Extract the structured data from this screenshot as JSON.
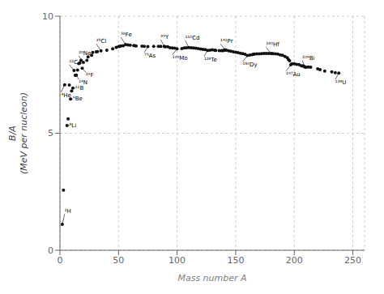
{
  "chart_data": {
    "type": "scatter",
    "xlabel": "Mass number A",
    "ylabel": "B/A\n(MeV per nucleon)",
    "x": [
      2,
      3,
      4,
      6,
      7,
      8,
      9,
      10,
      11,
      12,
      13,
      14,
      15,
      16,
      17,
      18,
      19,
      20,
      23,
      24,
      27,
      28,
      31,
      32,
      35,
      40,
      45,
      48,
      50,
      51,
      52,
      54,
      56,
      58,
      60,
      63,
      64,
      65,
      70,
      72,
      75,
      80,
      84,
      86,
      89,
      90,
      92,
      94,
      96,
      98,
      100,
      104,
      106,
      108,
      110,
      112,
      114,
      116,
      118,
      120,
      122,
      124,
      126,
      128,
      130,
      132,
      133,
      136,
      138,
      139,
      140,
      141,
      142,
      144,
      146,
      148,
      150,
      152,
      154,
      156,
      158,
      160,
      162,
      164,
      165,
      166,
      168,
      170,
      172,
      174,
      176,
      178,
      180,
      181,
      182,
      184,
      186,
      188,
      190,
      192,
      194,
      195,
      196,
      197,
      198,
      200,
      202,
      204,
      206,
      207,
      208,
      209,
      210,
      212,
      214,
      220,
      222,
      226,
      232,
      235,
      238
    ],
    "values": [
      1.11,
      2.57,
      7.07,
      5.33,
      5.61,
      7.06,
      6.46,
      6.81,
      6.93,
      7.68,
      7.47,
      7.48,
      7.7,
      7.98,
      8.0,
      8.11,
      7.78,
      8.03,
      8.11,
      8.26,
      8.33,
      8.45,
      8.48,
      8.49,
      8.52,
      8.55,
      8.61,
      8.67,
      8.7,
      8.71,
      8.73,
      8.74,
      8.79,
      8.77,
      8.76,
      8.75,
      8.74,
      8.73,
      8.72,
      8.71,
      8.7,
      8.71,
      8.71,
      8.71,
      8.71,
      8.69,
      8.69,
      8.65,
      8.64,
      8.63,
      8.61,
      8.62,
      8.64,
      8.65,
      8.66,
      8.65,
      8.64,
      8.63,
      8.62,
      8.6,
      8.58,
      8.57,
      8.54,
      8.55,
      8.56,
      8.55,
      8.54,
      8.53,
      8.53,
      8.53,
      8.54,
      8.56,
      8.55,
      8.52,
      8.5,
      8.48,
      8.46,
      8.44,
      8.42,
      8.4,
      8.37,
      8.32,
      8.34,
      8.36,
      8.37,
      8.38,
      8.39,
      8.39,
      8.4,
      8.41,
      8.41,
      8.41,
      8.41,
      8.4,
      8.4,
      8.39,
      8.38,
      8.35,
      8.33,
      8.28,
      8.23,
      8.15,
      8.1,
      7.92,
      7.97,
      7.97,
      7.94,
      7.93,
      7.88,
      7.87,
      7.87,
      7.83,
      7.82,
      7.83,
      7.82,
      7.75,
      7.72,
      7.66,
      7.62,
      7.59,
      7.57
    ],
    "color": "#111111",
    "marker": "o",
    "xlim": [
      0,
      260
    ],
    "ylim": [
      0,
      10
    ],
    "xticks": [
      0,
      50,
      100,
      150,
      200,
      250
    ],
    "yticks": [
      0,
      5,
      10
    ],
    "grid": true,
    "annotations": [
      {
        "text": "²H",
        "x": 2,
        "y": 1.11,
        "text_x": 4,
        "text_y": 1.55
      },
      {
        "text": "⁴He",
        "x": 4,
        "y": 7.07,
        "text_x": 1,
        "text_y": 6.75
      },
      {
        "text": "⁶Li",
        "x": 6,
        "y": 5.33,
        "text_x": 8,
        "text_y": 5.33
      },
      {
        "text": "⁹Be",
        "x": 9,
        "y": 6.46,
        "text_x": 11,
        "text_y": 6.46
      },
      {
        "text": "¹¹B",
        "x": 11,
        "y": 6.93,
        "text_x": 13,
        "text_y": 6.93
      },
      {
        "text": "¹²C",
        "x": 12,
        "y": 7.68,
        "text_x": 8,
        "text_y": 7.93
      },
      {
        "text": "¹⁴N",
        "x": 14,
        "y": 7.48,
        "text_x": 16,
        "text_y": 7.3
      },
      {
        "text": "¹⁹F",
        "x": 19,
        "y": 7.78,
        "text_x": 22,
        "text_y": 7.6
      },
      {
        "text": "²⁰Ne",
        "x": 20,
        "y": 8.03,
        "text_x": 16,
        "text_y": 8.3
      },
      {
        "text": "³⁵Cl",
        "x": 35,
        "y": 8.52,
        "text_x": 31,
        "text_y": 8.82
      },
      {
        "text": "⁵⁶Fe",
        "x": 56,
        "y": 8.79,
        "text_x": 52,
        "text_y": 9.1
      },
      {
        "text": "⁷⁵As",
        "x": 75,
        "y": 8.7,
        "text_x": 72,
        "text_y": 8.45
      },
      {
        "text": "⁸⁹Y",
        "x": 89,
        "y": 8.71,
        "text_x": 86,
        "text_y": 9.0
      },
      {
        "text": "¹⁰⁰Mo",
        "x": 100,
        "y": 8.61,
        "text_x": 96,
        "text_y": 8.35
      },
      {
        "text": "¹¹⁰Cd",
        "x": 110,
        "y": 8.66,
        "text_x": 107,
        "text_y": 8.95
      },
      {
        "text": "¹²⁶Te",
        "x": 126,
        "y": 8.54,
        "text_x": 123,
        "text_y": 8.28
      },
      {
        "text": "¹⁴¹Pr",
        "x": 141,
        "y": 8.56,
        "text_x": 137,
        "text_y": 8.82
      },
      {
        "text": "¹⁶⁰Dy",
        "x": 160,
        "y": 8.32,
        "text_x": 156,
        "text_y": 8.06
      },
      {
        "text": "¹⁸⁰Hf",
        "x": 180,
        "y": 8.41,
        "text_x": 176,
        "text_y": 8.67
      },
      {
        "text": "¹⁹⁷Au",
        "x": 197,
        "y": 7.92,
        "text_x": 193,
        "text_y": 7.66
      },
      {
        "text": "²⁰⁹Bi",
        "x": 209,
        "y": 7.83,
        "text_x": 207,
        "text_y": 8.1
      },
      {
        "text": "²³⁸U",
        "x": 238,
        "y": 7.57,
        "text_x": 235,
        "text_y": 7.3
      }
    ]
  }
}
